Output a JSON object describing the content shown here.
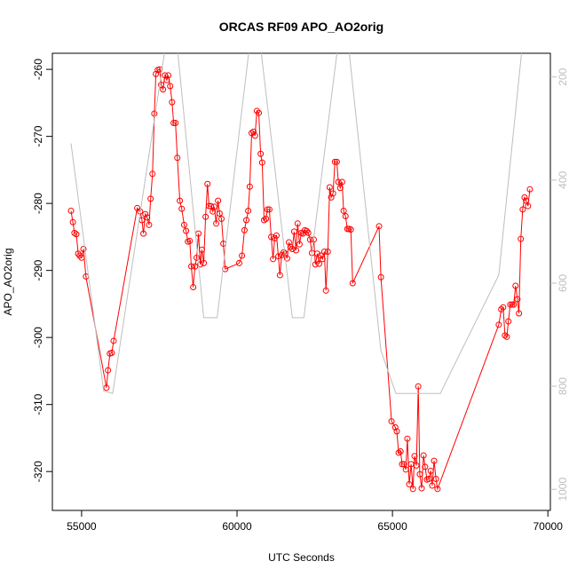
{
  "chart_data": {
    "type": "line",
    "title": "ORCAS RF09 APO_AO2orig",
    "x_label": "UTC Seconds",
    "y_label": "APO_AO2orig",
    "xlim": [
      54060,
      70080
    ],
    "xticks": [
      55000,
      60000,
      65000,
      70000
    ],
    "ylim": [
      -325.8,
      -257.6
    ],
    "yticks": [
      -320,
      -310,
      -300,
      -290,
      -280,
      -270,
      -260
    ],
    "y2lim": [
      1041,
      154
    ],
    "y2ticks": [
      200,
      400,
      600,
      800,
      1000
    ],
    "series": [
      {
        "color": "#ff0000",
        "markers": true,
        "x": [
          54660,
          54720,
          54770,
          54830,
          54890,
          54940,
          55000,
          55060,
          55140,
          55800,
          55850,
          55910,
          55970,
          56030,
          56790,
          56880,
          56940,
          56990,
          57050,
          57110,
          57170,
          57220,
          57280,
          57340,
          57390,
          57450,
          57510,
          57560,
          57620,
          57680,
          57740,
          57790,
          57850,
          57910,
          57960,
          58020,
          58080,
          58160,
          58220,
          58300,
          58360,
          58420,
          58480,
          58530,
          58590,
          58650,
          58700,
          58760,
          58820,
          58870,
          58930,
          58990,
          59050,
          59100,
          59160,
          59220,
          59270,
          59330,
          59390,
          59440,
          59500,
          59560,
          59620,
          60070,
          60160,
          60240,
          60300,
          60360,
          60410,
          60470,
          60530,
          60580,
          60640,
          60700,
          60760,
          60810,
          60870,
          60930,
          60980,
          61040,
          61100,
          61160,
          61210,
          61270,
          61330,
          61380,
          61440,
          61500,
          61550,
          61610,
          61670,
          61720,
          61780,
          61840,
          61900,
          61950,
          62010,
          62070,
          62120,
          62180,
          62240,
          62290,
          62350,
          62410,
          62470,
          62520,
          62580,
          62640,
          62690,
          62750,
          62810,
          62860,
          62920,
          62980,
          63030,
          63090,
          63150,
          63210,
          63260,
          63320,
          63380,
          63430,
          63490,
          63550,
          63600,
          63660,
          63720,
          64570,
          64630,
          64970,
          65090,
          65140,
          65200,
          65260,
          65310,
          65370,
          65430,
          65480,
          65540,
          65600,
          65660,
          65710,
          65770,
          65830,
          65880,
          65940,
          66000,
          66050,
          66110,
          66170,
          66230,
          66280,
          66340,
          66400,
          66450,
          68420,
          68500,
          68560,
          68620,
          68680,
          68730,
          68790,
          68850,
          68900,
          68960,
          69020,
          69070,
          69130,
          69190,
          69250,
          69300,
          69360,
          69420
        ],
        "values": [
          -281.1,
          -282.8,
          -284.4,
          -284.6,
          -287.5,
          -287.8,
          -288.1,
          -286.8,
          -290.9,
          -307.5,
          -304.9,
          -302.4,
          -302.3,
          -300.5,
          -280.7,
          -281.2,
          -282.5,
          -284.5,
          -281.6,
          -282.1,
          -283.2,
          -279.3,
          -275.6,
          -266.6,
          -260.7,
          -260.1,
          -260.0,
          -262.3,
          -263.0,
          -260.9,
          -261.6,
          -260.9,
          -262.5,
          -264.9,
          -268.0,
          -268.0,
          -273.2,
          -279.6,
          -280.8,
          -283.2,
          -284.1,
          -285.7,
          -285.6,
          -289.4,
          -292.5,
          -289.4,
          -288.1,
          -284.5,
          -289.1,
          -286.9,
          -288.9,
          -282.0,
          -277.1,
          -280.4,
          -280.4,
          -281.2,
          -280.5,
          -283.0,
          -279.6,
          -281.5,
          -282.3,
          -286.0,
          -289.8,
          -288.9,
          -287.8,
          -284.0,
          -282.5,
          -281.1,
          -277.5,
          -269.5,
          -269.3,
          -269.9,
          -266.2,
          -266.5,
          -272.6,
          -273.9,
          -282.5,
          -282.3,
          -280.9,
          -280.9,
          -285.0,
          -288.3,
          -285.2,
          -284.8,
          -287.9,
          -290.7,
          -287.7,
          -287.3,
          -287.5,
          -288.2,
          -285.8,
          -286.5,
          -286.8,
          -284.2,
          -287.0,
          -283.0,
          -286.1,
          -284.4,
          -284.5,
          -284.0,
          -284.1,
          -284.4,
          -285.4,
          -287.4,
          -285.4,
          -289.1,
          -287.5,
          -289.0,
          -287.8,
          -288.3,
          -287.2,
          -293.0,
          -287.2,
          -277.6,
          -279.1,
          -278.5,
          -273.8,
          -273.8,
          -276.8,
          -277.7,
          -276.8,
          -281.1,
          -281.9,
          -283.8,
          -283.8,
          -283.9,
          -291.9,
          -283.4,
          -291.0,
          -312.5,
          -313.4,
          -314.0,
          -317.2,
          -317.0,
          -318.9,
          -318.9,
          -319.7,
          -315.1,
          -321.9,
          -318.9,
          -322.6,
          -317.7,
          -319.1,
          -307.3,
          -320.4,
          -322.5,
          -317.6,
          -319.3,
          -321.2,
          -321.1,
          -319.9,
          -322.1,
          -318.4,
          -321.1,
          -322.6,
          -298.1,
          -295.8,
          -295.5,
          -299.7,
          -299.9,
          -297.6,
          -295.1,
          -295.1,
          -295.1,
          -292.3,
          -294.3,
          -296.4,
          -285.3,
          -280.9,
          -279.1,
          -279.6,
          -280.4,
          -277.9
        ]
      },
      {
        "color": "#bebebe",
        "axis": "y2",
        "markers": false,
        "x": [
          54660,
          55710,
          56000,
          57930,
          58930,
          59360,
          60580,
          61780,
          62150,
          63430,
          64630,
          65110,
          66540,
          68420,
          69330
        ],
        "values": [
          329,
          809,
          814,
          50,
          667,
          667,
          50,
          667,
          667,
          50,
          731,
          814,
          814,
          584,
          50
        ]
      }
    ]
  }
}
